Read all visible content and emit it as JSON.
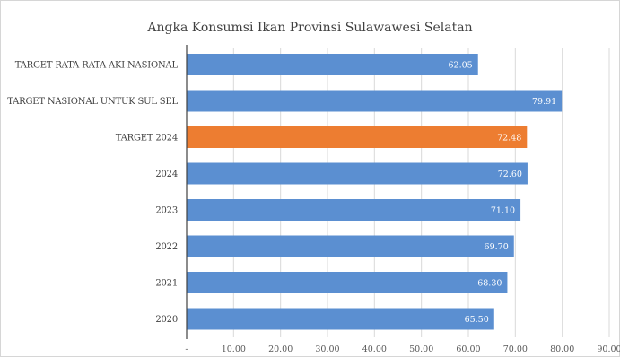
{
  "chart_data": {
    "type": "bar",
    "orientation": "horizontal",
    "title": "Angka Konsumsi Ikan Provinsi Sulawawesi Selatan",
    "categories": [
      "TARGET RATA-RATA AKI NASIONAL",
      "TARGET NASIONAL UNTUK SUL SEL",
      "TARGET 2024",
      "2024",
      "2023",
      "2022",
      "2021",
      "2020"
    ],
    "values": [
      62.05,
      79.91,
      72.48,
      72.6,
      71.1,
      69.7,
      68.3,
      65.5
    ],
    "value_labels": [
      "62.05",
      "79.91",
      "72.48",
      "72.60",
      "71.10",
      "69.70",
      "68.30",
      "65.50"
    ],
    "bar_colors": [
      "#5b8fd1",
      "#5b8fd1",
      "#ed7d31",
      "#5b8fd1",
      "#5b8fd1",
      "#5b8fd1",
      "#5b8fd1",
      "#5b8fd1"
    ],
    "xlim": [
      0,
      90
    ],
    "x_ticks": [
      0,
      10,
      20,
      30,
      40,
      50,
      60,
      70,
      80,
      90
    ],
    "x_tick_labels": [
      "-",
      "10.00",
      "20.00",
      "30.00",
      "40.00",
      "50.00",
      "60.00",
      "70.00",
      "80.00",
      "90.00"
    ],
    "grid": true,
    "legend": "none"
  }
}
